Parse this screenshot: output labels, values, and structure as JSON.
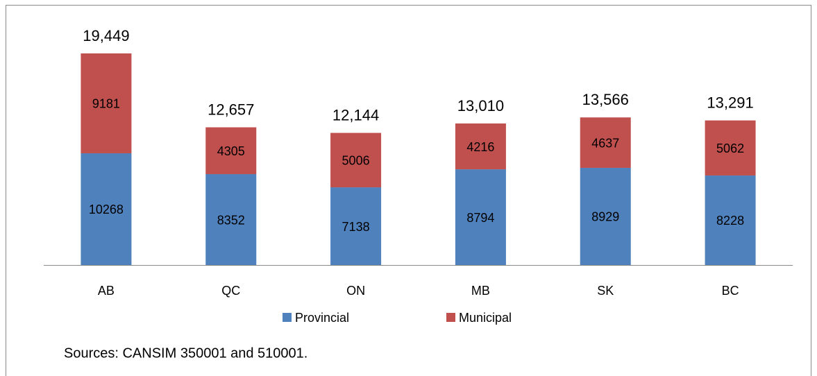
{
  "chart_data": {
    "type": "stacked_bar",
    "categories": [
      "AB",
      "QC",
      "ON",
      "MB",
      "SK",
      "BC"
    ],
    "series": [
      {
        "name": "Provincial",
        "color": "#4f81bd",
        "values": [
          10268,
          8352,
          7138,
          8794,
          8929,
          8228
        ]
      },
      {
        "name": "Municipal",
        "color": "#c0504d",
        "values": [
          9181,
          4305,
          5006,
          4216,
          4637,
          5062
        ]
      }
    ],
    "total_labels": [
      "19,449",
      "12,657",
      "12,144",
      "13,010",
      "13,566",
      "13,291"
    ],
    "note": "Sources: CANSIM 350001 and 510001."
  }
}
